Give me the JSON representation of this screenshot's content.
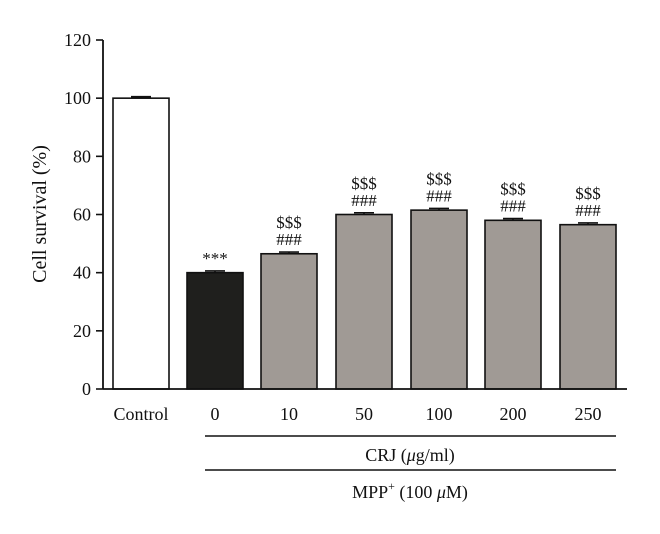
{
  "chart_data": {
    "type": "bar",
    "title": "",
    "xlabel": "",
    "ylabel": "Cell survival (%)",
    "ylim": [
      0,
      120
    ],
    "yticks": [
      0,
      20,
      40,
      60,
      80,
      100,
      120
    ],
    "categories": [
      "Control",
      "0",
      "10",
      "50",
      "100",
      "200",
      "250"
    ],
    "values": [
      100,
      40,
      46.5,
      60,
      61.5,
      58,
      56.5
    ],
    "errors": [
      0.5,
      0.6,
      0.6,
      0.6,
      0.6,
      0.6,
      0.6
    ],
    "bar_colors": [
      "#ffffff",
      "#1f1f1d",
      "#a09a95",
      "#a09a95",
      "#a09a95",
      "#a09a95",
      "#a09a95"
    ],
    "annotations": [
      [],
      [
        "***"
      ],
      [
        "$$$",
        "###"
      ],
      [
        "$$$",
        "###"
      ],
      [
        "$$$",
        "###"
      ],
      [
        "$$$",
        "###"
      ],
      [
        "$$$",
        "###"
      ]
    ],
    "group_labels": {
      "crj_prefix": "CRJ (",
      "crj_mu": "μ",
      "crj_suffix": "g/ml)",
      "mpp_prefix": "MPP",
      "mpp_sup": "+",
      "mpp_middle": " (100 ",
      "mpp_mu": "μ",
      "mpp_suffix": "M)"
    }
  }
}
